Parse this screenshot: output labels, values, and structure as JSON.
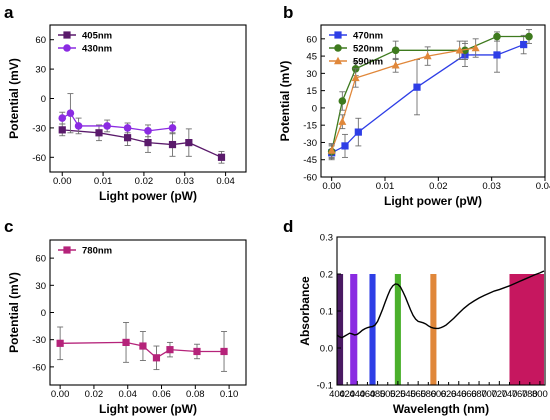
{
  "chart_data": [
    {
      "panel": "a",
      "type": "line",
      "xlabel": "Light power (pW)",
      "ylabel": "Potential (mV)",
      "xlim": [
        -0.003,
        0.045
      ],
      "ylim": [
        -75,
        75
      ],
      "xticks": [
        0.0,
        0.01,
        0.02,
        0.03,
        0.04
      ],
      "xtick_labels": [
        "0.00",
        "0.01",
        "0.02",
        "0.03",
        "0.04"
      ],
      "yticks": [
        -60,
        -30,
        0,
        30,
        60
      ],
      "ytick_labels": [
        "-60",
        "-30",
        "0",
        "30",
        "60"
      ],
      "legend_position": "top-left",
      "series": [
        {
          "name": "405nm",
          "color": "#5a1a6b",
          "marker": "square",
          "x": [
            0.0,
            0.009,
            0.016,
            0.021,
            0.027,
            0.031,
            0.039
          ],
          "y": [
            -32,
            -35,
            -40,
            -45,
            -47,
            -45,
            -60
          ],
          "err": [
            6,
            8,
            8,
            10,
            12,
            14,
            6
          ]
        },
        {
          "name": "430nm",
          "color": "#8b2be2",
          "marker": "circle",
          "x": [
            0.0,
            0.002,
            0.004,
            0.011,
            0.016,
            0.021,
            0.027
          ],
          "y": [
            -20,
            -15,
            -28,
            -28,
            -30,
            -33,
            -30
          ],
          "err": [
            6,
            20,
            8,
            6,
            5,
            6,
            6
          ]
        }
      ]
    },
    {
      "panel": "b",
      "type": "line",
      "xlabel": "Light power (pW)",
      "ylabel": "Potential (mV)",
      "xlim": [
        -0.002,
        0.04
      ],
      "ylim": [
        -60,
        72
      ],
      "xticks": [
        0.0,
        0.01,
        0.02,
        0.03,
        0.04
      ],
      "xtick_labels": [
        "0.00",
        "0.01",
        "0.02",
        "0.03",
        "0.04"
      ],
      "yticks": [
        -60,
        -45,
        -30,
        -15,
        0,
        15,
        30,
        45,
        60
      ],
      "ytick_labels": [
        "-60",
        "-45",
        "-30",
        "-15",
        "0",
        "15",
        "30",
        "45",
        "60"
      ],
      "legend_position": "top-left",
      "series": [
        {
          "name": "470nm",
          "color": "#2e3ee6",
          "marker": "square",
          "x": [
            0.0,
            0.0025,
            0.005,
            0.016,
            0.025,
            0.031,
            0.036
          ],
          "y": [
            -39,
            -33,
            -21,
            18,
            46,
            46,
            55
          ],
          "err": [
            6,
            10,
            12,
            24,
            10,
            15,
            8
          ]
        },
        {
          "name": "520nm",
          "color": "#3e7a1e",
          "marker": "circle",
          "x": [
            0.0,
            0.002,
            0.0045,
            0.012,
            0.025,
            0.031,
            0.037
          ],
          "y": [
            -38,
            6,
            34,
            50,
            50,
            62,
            62
          ],
          "err": [
            6,
            8,
            6,
            8,
            8,
            4,
            6
          ]
        },
        {
          "name": "590nm",
          "color": "#e0873a",
          "marker": "triangle",
          "x": [
            0.0,
            0.002,
            0.0045,
            0.012,
            0.018,
            0.024,
            0.027
          ],
          "y": [
            -37,
            -12,
            26,
            37,
            45,
            50,
            52
          ],
          "err": [
            6,
            6,
            8,
            6,
            8,
            8,
            8
          ]
        }
      ]
    },
    {
      "panel": "c",
      "type": "line",
      "xlabel": "Light power (pW)",
      "ylabel": "Potential (mV)",
      "xlim": [
        -0.006,
        0.11
      ],
      "ylim": [
        -80,
        80
      ],
      "xticks": [
        0.0,
        0.02,
        0.04,
        0.06,
        0.08,
        0.1
      ],
      "xtick_labels": [
        "0.00",
        "0.02",
        "0.04",
        "0.06",
        "0.08",
        "0.10"
      ],
      "yticks": [
        -60,
        -30,
        0,
        30,
        60
      ],
      "ytick_labels": [
        "-60",
        "-30",
        "0",
        "30",
        "60"
      ],
      "legend_position": "top-left",
      "series": [
        {
          "name": "780nm",
          "color": "#b5237a",
          "marker": "square",
          "x": [
            0.0,
            0.039,
            0.049,
            0.057,
            0.065,
            0.081,
            0.097
          ],
          "y": [
            -34,
            -33,
            -37,
            -50,
            -41,
            -43,
            -43
          ],
          "err": [
            18,
            22,
            16,
            13,
            8,
            8,
            22
          ]
        }
      ]
    },
    {
      "panel": "d",
      "type": "line",
      "xlabel": "Wavelength (nm)",
      "ylabel": "Absorbance",
      "xlim": [
        400,
        810
      ],
      "ylim": [
        -0.1,
        0.3
      ],
      "xticks": [
        400,
        440,
        480,
        520,
        560,
        600,
        640,
        680,
        720,
        760,
        800
      ],
      "xtick_labels": [
        "400",
        "440",
        "480",
        "520",
        "560",
        "600",
        "640",
        "680",
        "720",
        "760",
        "800"
      ],
      "xticks_extra": [
        420,
        460,
        500,
        540,
        580,
        620,
        660,
        700,
        740,
        780
      ],
      "xtick_labels_extra": [
        "420",
        "460",
        "500",
        "540",
        "580",
        "620",
        "660",
        "700",
        "740",
        "780"
      ],
      "yticks": [
        -0.1,
        0.0,
        0.1,
        0.2,
        0.3
      ],
      "ytick_labels": [
        "-0.1",
        "0.0",
        "0.1",
        "0.2",
        "0.3"
      ],
      "bands": [
        {
          "x0": 400,
          "x1": 412,
          "color": "#4a1a63"
        },
        {
          "x0": 426,
          "x1": 440,
          "color": "#8a2be2"
        },
        {
          "x0": 464,
          "x1": 476,
          "color": "#2e3ee6"
        },
        {
          "x0": 514,
          "x1": 526,
          "color": "#4bb02c"
        },
        {
          "x0": 584,
          "x1": 596,
          "color": "#e0873a"
        },
        {
          "x0": 740,
          "x1": 808,
          "color": "#c6175f"
        }
      ],
      "band_top": 0.2,
      "series": [
        {
          "color": "#000000",
          "x": [
            400,
            405,
            410,
            415,
            420,
            425,
            430,
            435,
            440,
            445,
            450,
            455,
            460,
            465,
            470,
            475,
            480,
            485,
            490,
            495,
            500,
            505,
            510,
            515,
            520,
            525,
            530,
            535,
            540,
            545,
            550,
            555,
            560,
            565,
            570,
            575,
            580,
            585,
            590,
            595,
            600,
            605,
            610,
            615,
            620,
            630,
            640,
            650,
            660,
            670,
            680,
            690,
            700,
            710,
            720,
            730,
            740,
            750,
            760,
            770,
            780,
            790,
            800,
            808
          ],
          "y": [
            0.035,
            0.03,
            0.028,
            0.032,
            0.036,
            0.04,
            0.038,
            0.035,
            0.037,
            0.042,
            0.048,
            0.052,
            0.055,
            0.057,
            0.058,
            0.062,
            0.072,
            0.088,
            0.105,
            0.124,
            0.142,
            0.158,
            0.168,
            0.173,
            0.172,
            0.165,
            0.152,
            0.137,
            0.12,
            0.103,
            0.088,
            0.078,
            0.072,
            0.07,
            0.068,
            0.065,
            0.06,
            0.056,
            0.054,
            0.053,
            0.053,
            0.055,
            0.058,
            0.062,
            0.068,
            0.08,
            0.094,
            0.107,
            0.118,
            0.127,
            0.135,
            0.142,
            0.148,
            0.154,
            0.158,
            0.163,
            0.168,
            0.174,
            0.18,
            0.186,
            0.192,
            0.198,
            0.203,
            0.208
          ]
        }
      ]
    }
  ],
  "panel_letters": [
    "a",
    "b",
    "c",
    "d"
  ]
}
